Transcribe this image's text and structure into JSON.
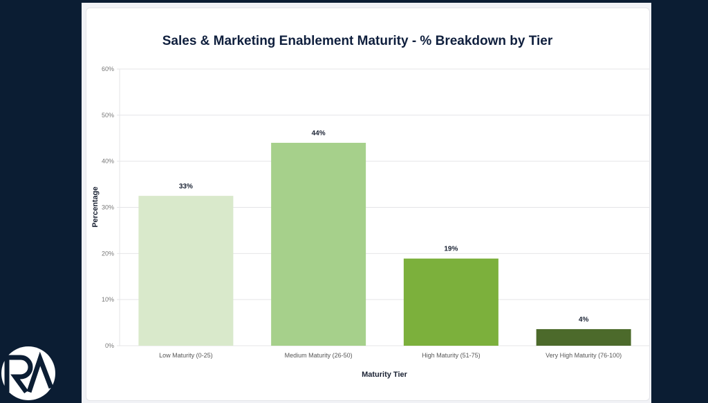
{
  "chart_data": {
    "type": "bar",
    "title": "Sales & Marketing Enablement Maturity - % Breakdown by Tier",
    "xlabel": "Maturity Tier",
    "ylabel": "Percentage",
    "ylim": [
      0,
      60
    ],
    "yticks": [
      "0%",
      "10%",
      "20%",
      "30%",
      "40%",
      "50%",
      "60%"
    ],
    "grid": true,
    "categories": [
      "Low Maturity (0-25)",
      "Medium Maturity (26-50)",
      "High Maturity (51-75)",
      "Very High Maturity (76-100)"
    ],
    "values": [
      32.5,
      44,
      18.9,
      3.6
    ],
    "data_labels": [
      "33%",
      "44%",
      "19%",
      "4%"
    ],
    "colors": [
      "#d9e9cb",
      "#a6d08b",
      "#7cb03c",
      "#4c6a2b"
    ]
  },
  "logo": {
    "text": "RA"
  }
}
